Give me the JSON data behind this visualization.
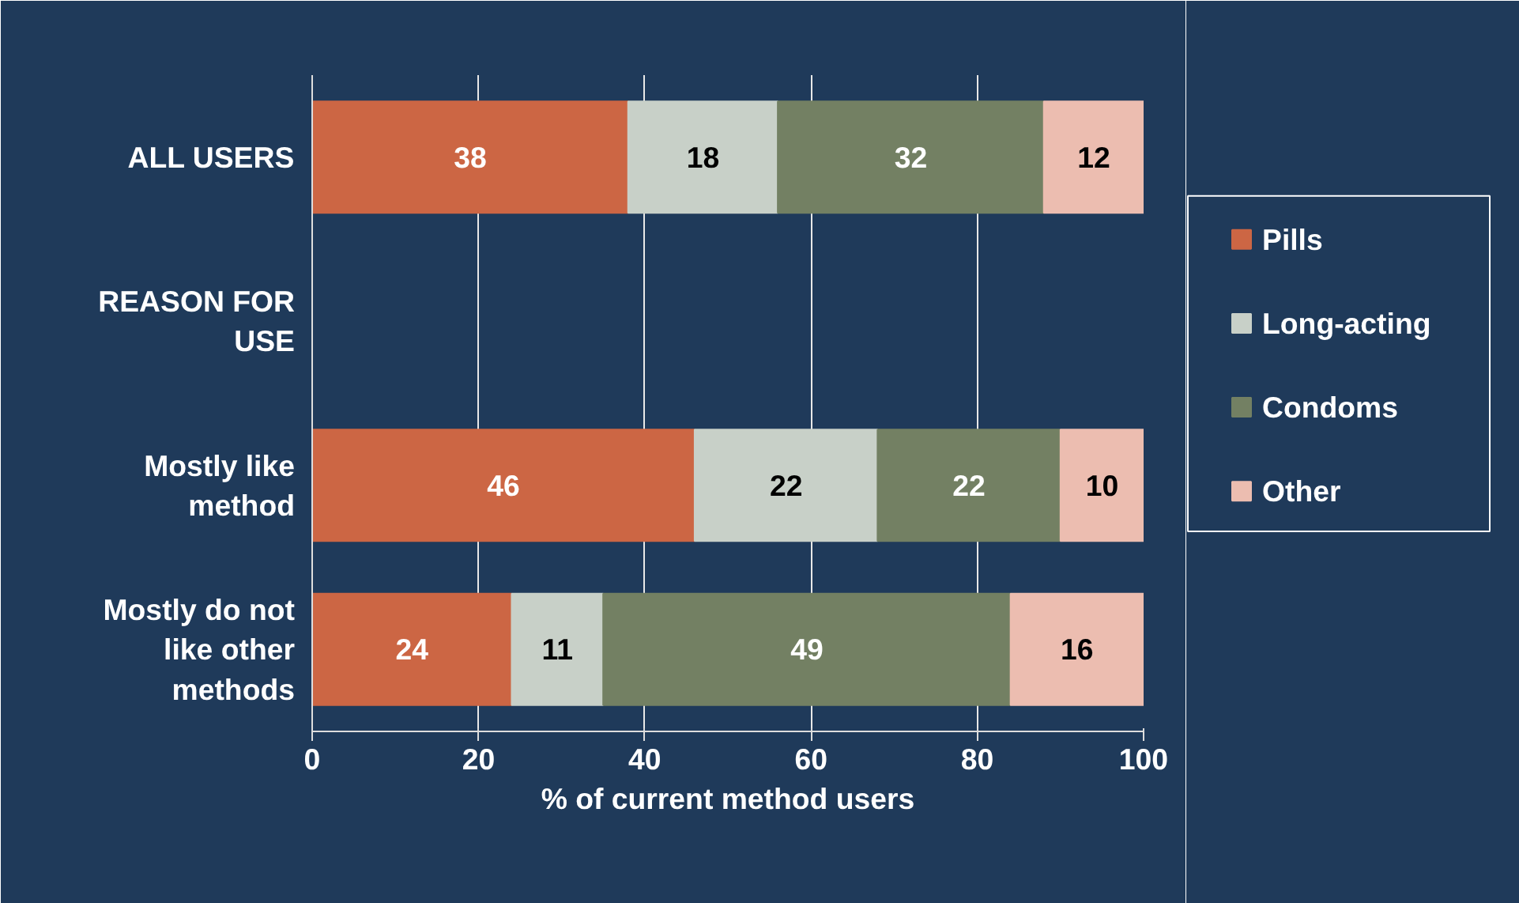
{
  "chart_data": {
    "type": "bar",
    "orientation": "horizontal",
    "stacked": true,
    "data_labels": true,
    "grid": "x",
    "legend": "right",
    "xlabel": "% of current method users",
    "categories": [
      "ALL USERS",
      "REASON FOR USE",
      "Mostly like method",
      "Mostly do not like other methods"
    ],
    "xlim": [
      0,
      100
    ],
    "xticks": [
      0,
      20,
      40,
      60,
      80,
      100
    ],
    "series": [
      {
        "name": "Pills",
        "color": "#cc6644",
        "values": [
          38,
          null,
          46,
          24
        ]
      },
      {
        "name": "Long-acting",
        "color": "#c8d0c8",
        "values": [
          18,
          null,
          22,
          11
        ]
      },
      {
        "name": "Condoms",
        "color": "#738063",
        "values": [
          32,
          null,
          22,
          49
        ]
      },
      {
        "name": "Other",
        "color": "#ecbdb0",
        "values": [
          12,
          null,
          10,
          16
        ]
      }
    ]
  }
}
